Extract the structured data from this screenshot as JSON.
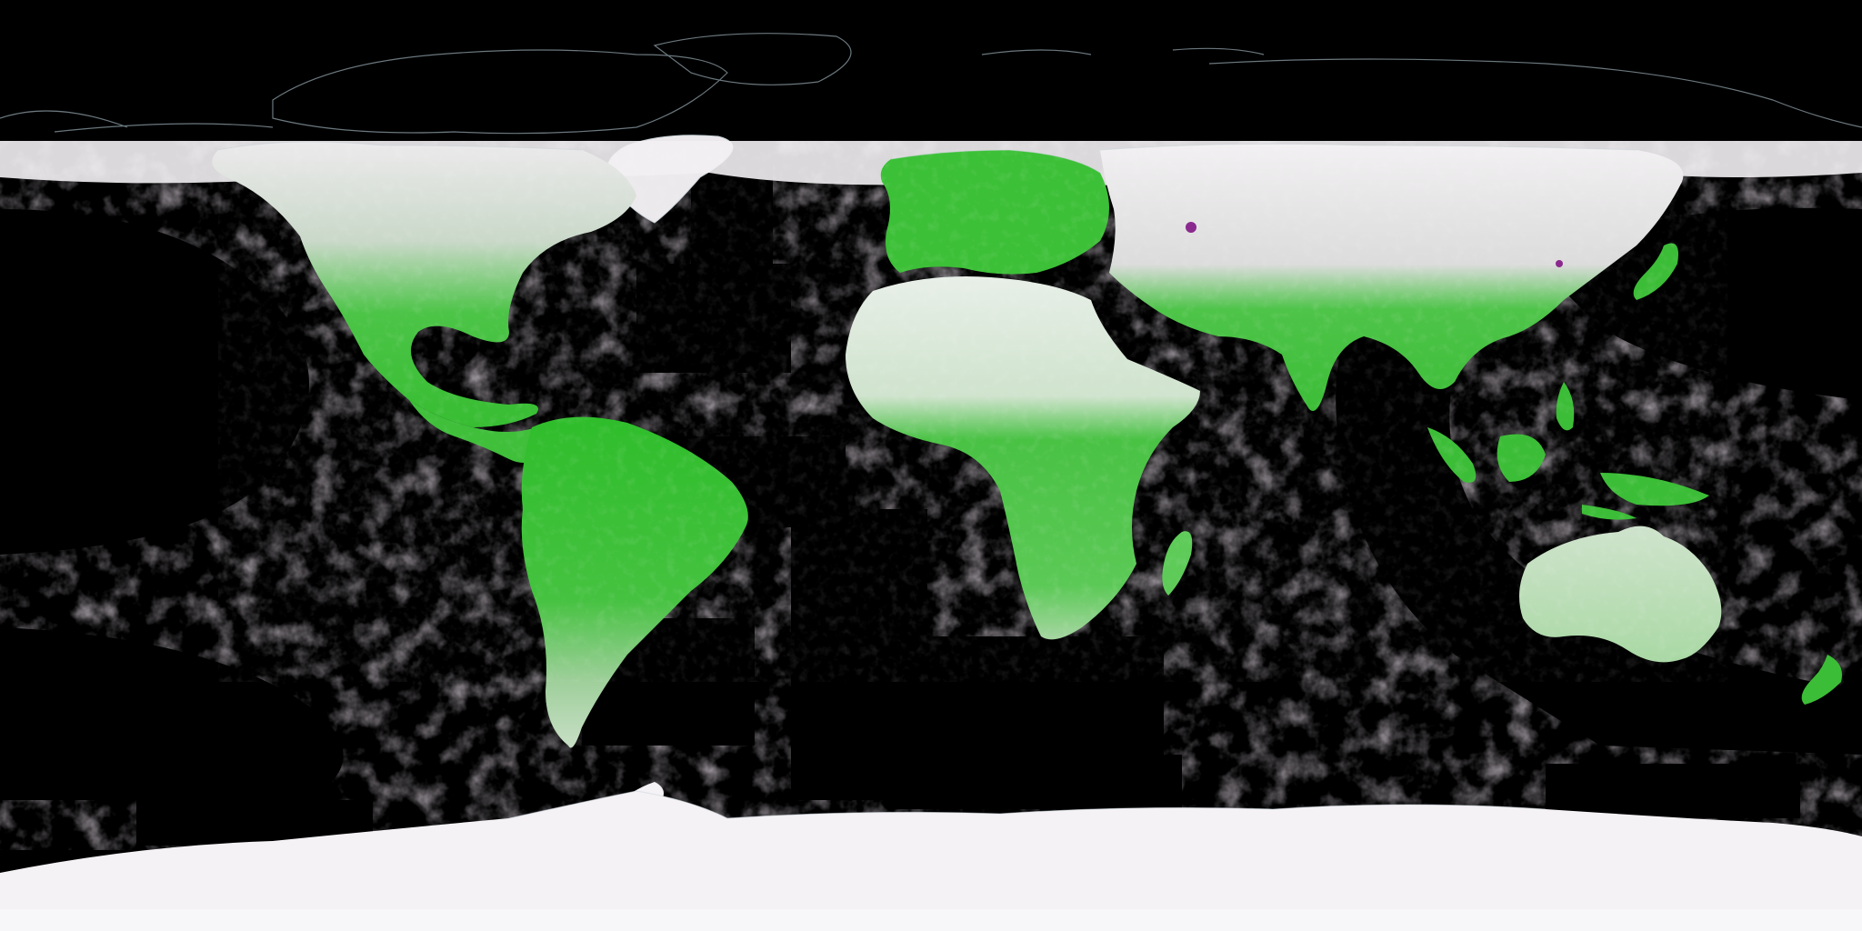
{
  "map": {
    "projection": "equirectangular",
    "palette": {
      "background": "#000000",
      "vegetation": "#3fcf3a",
      "vegetation_dense": "#22b51f",
      "sparse_vegetation": "#d9ecd9",
      "snow_ice": "#f6f3f6",
      "cloud": "#bcb6bd",
      "coastline": "#c9d4d9",
      "anomaly": "#8a2a8e"
    },
    "regions": [
      "north-america",
      "central-america",
      "south-america",
      "europe",
      "africa",
      "asia",
      "australia",
      "antarctica",
      "greenland"
    ]
  }
}
